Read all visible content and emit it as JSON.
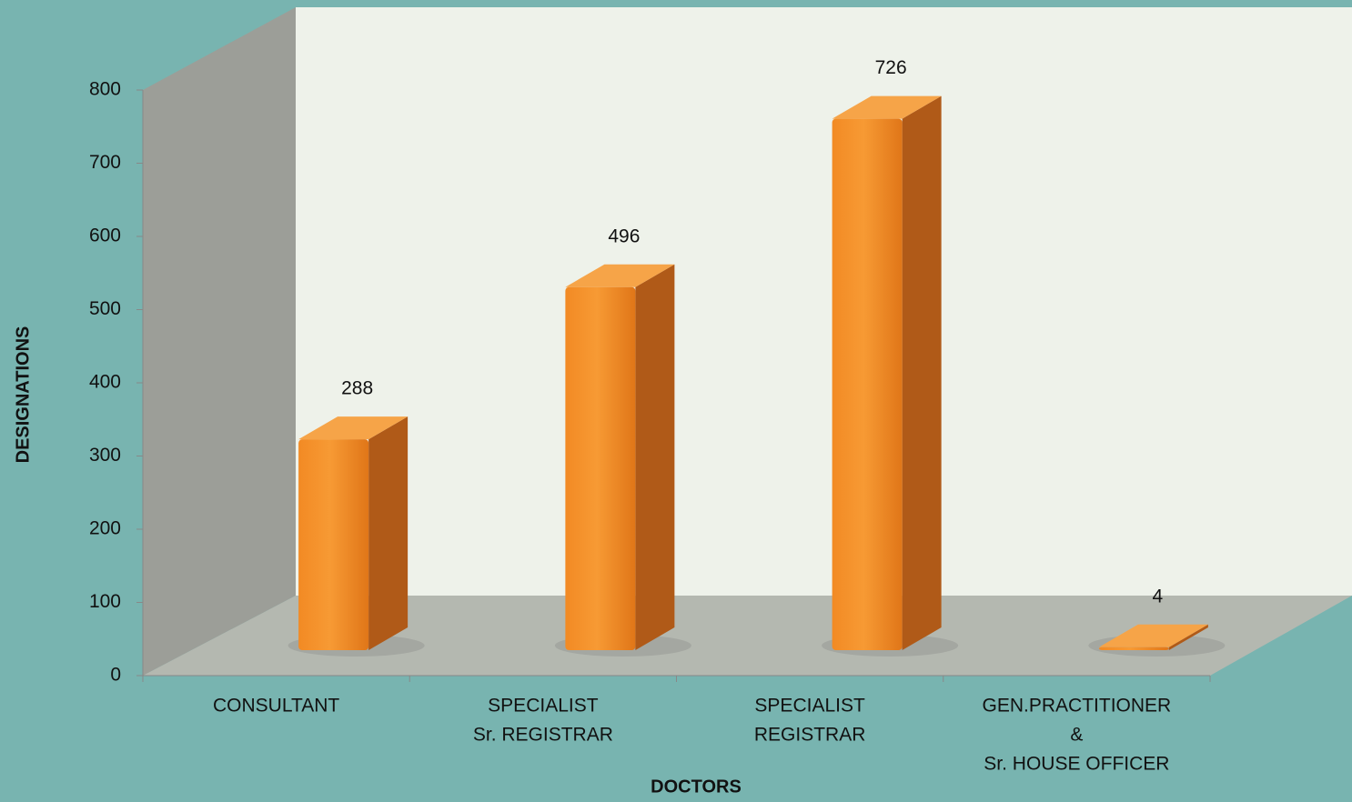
{
  "chart_data": {
    "type": "bar3d",
    "categories": [
      [
        "CONSULTANT"
      ],
      [
        "SPECIALIST",
        "Sr. REGISTRAR"
      ],
      [
        "SPECIALIST",
        "REGISTRAR"
      ],
      [
        "GEN.PRACTITIONER",
        "&",
        "Sr. HOUSE OFFICER"
      ]
    ],
    "values": [
      288,
      496,
      726,
      4
    ],
    "color": "#f08a22",
    "xlabel": "DOCTORS",
    "ylabel": "DESIGNATIONS",
    "ylim": [
      0,
      800
    ],
    "yticks": [
      0,
      100,
      200,
      300,
      400,
      500,
      600,
      700,
      800
    ]
  }
}
